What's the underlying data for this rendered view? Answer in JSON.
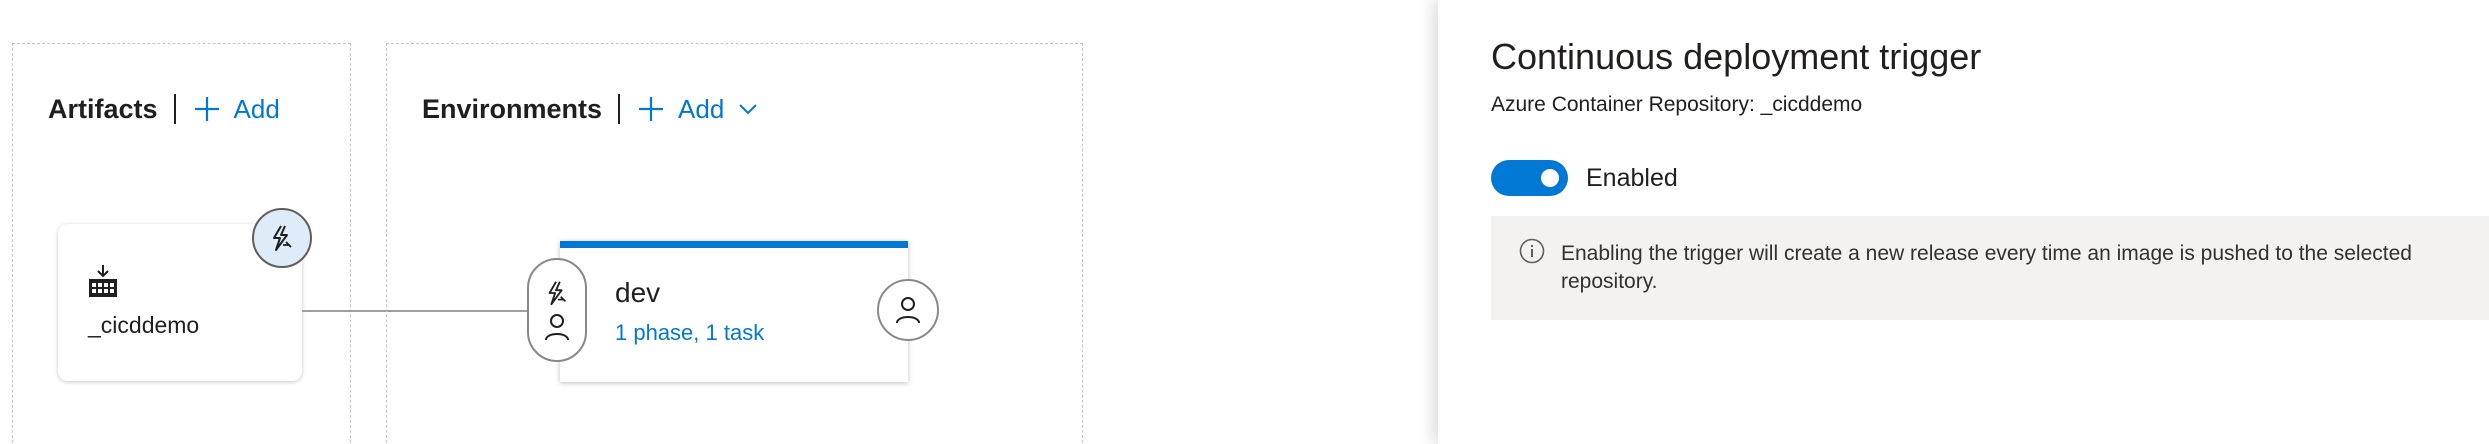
{
  "artifacts": {
    "title": "Artifacts",
    "add_label": "Add",
    "items": [
      {
        "name": "_cicddemo",
        "icon": "container-registry-icon",
        "trigger_icon": "lightning-trigger-icon"
      }
    ]
  },
  "environments": {
    "title": "Environments",
    "add_label": "Add",
    "items": [
      {
        "name": "dev",
        "summary": "1 phase, 1 task"
      }
    ]
  },
  "panel": {
    "title": "Continuous deployment trigger",
    "subtitle": "Azure Container Repository: _cicddemo",
    "toggle_label": "Enabled",
    "toggle_on": true,
    "info_text": "Enabling the trigger will create a new release every time an image is pushed to the selected repository."
  },
  "colors": {
    "accent": "#0078d4",
    "badge_bg": "#deecf9",
    "info_bg": "#f3f2f1"
  }
}
